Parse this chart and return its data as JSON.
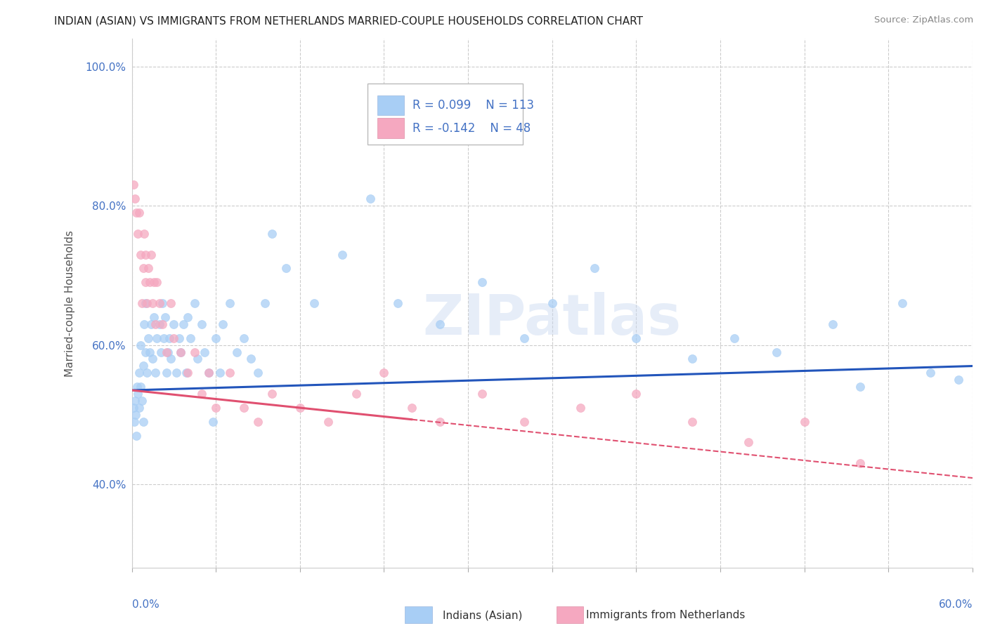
{
  "title": "INDIAN (ASIAN) VS IMMIGRANTS FROM NETHERLANDS MARRIED-COUPLE HOUSEHOLDS CORRELATION CHART",
  "source": "Source: ZipAtlas.com",
  "ylabel": "Married-couple Households",
  "legend_blue_r": "R = 0.099",
  "legend_blue_n": "N = 113",
  "legend_pink_r": "R = -0.142",
  "legend_pink_n": "N = 48",
  "legend_blue_label": "Indians (Asian)",
  "legend_pink_label": "Immigrants from Netherlands",
  "blue_color": "#a8cef5",
  "pink_color": "#f5a8c0",
  "trend_blue_color": "#2255bb",
  "trend_pink_color": "#e05070",
  "watermark": "ZIPatlas",
  "background_color": "#ffffff",
  "blue_scatter_x": [
    0.1,
    0.15,
    0.2,
    0.25,
    0.3,
    0.35,
    0.4,
    0.5,
    0.5,
    0.6,
    0.6,
    0.7,
    0.8,
    0.8,
    0.9,
    1.0,
    1.0,
    1.1,
    1.2,
    1.3,
    1.4,
    1.5,
    1.6,
    1.7,
    1.8,
    2.0,
    2.1,
    2.2,
    2.3,
    2.4,
    2.5,
    2.6,
    2.7,
    2.8,
    3.0,
    3.2,
    3.4,
    3.5,
    3.7,
    3.9,
    4.0,
    4.2,
    4.5,
    4.7,
    5.0,
    5.2,
    5.5,
    5.8,
    6.0,
    6.3,
    6.5,
    7.0,
    7.5,
    8.0,
    8.5,
    9.0,
    9.5,
    10.0,
    11.0,
    13.0,
    15.0,
    17.0,
    19.0,
    22.0,
    25.0,
    28.0,
    30.0,
    33.0,
    36.0,
    40.0,
    43.0,
    46.0,
    50.0,
    52.0,
    55.0,
    57.0,
    59.0
  ],
  "blue_scatter_y": [
    51,
    49,
    52,
    50,
    47,
    54,
    53,
    51,
    56,
    60,
    54,
    52,
    49,
    57,
    63,
    59,
    66,
    56,
    61,
    59,
    63,
    58,
    64,
    56,
    61,
    63,
    59,
    66,
    61,
    64,
    56,
    59,
    61,
    58,
    63,
    56,
    61,
    59,
    63,
    56,
    64,
    61,
    66,
    58,
    63,
    59,
    56,
    49,
    61,
    56,
    63,
    66,
    59,
    61,
    58,
    56,
    66,
    76,
    71,
    66,
    73,
    81,
    66,
    63,
    69,
    61,
    66,
    71,
    61,
    58,
    61,
    59,
    63,
    54,
    66,
    56,
    55
  ],
  "pink_scatter_x": [
    0.1,
    0.2,
    0.3,
    0.4,
    0.5,
    0.6,
    0.7,
    0.8,
    0.9,
    1.0,
    1.0,
    1.1,
    1.2,
    1.3,
    1.4,
    1.5,
    1.6,
    1.7,
    1.8,
    2.0,
    2.2,
    2.5,
    2.8,
    3.0,
    3.5,
    4.0,
    4.5,
    5.0,
    5.5,
    6.0,
    7.0,
    8.0,
    9.0,
    10.0,
    12.0,
    14.0,
    16.0,
    18.0,
    20.0,
    22.0,
    25.0,
    28.0,
    32.0,
    36.0,
    40.0,
    44.0,
    48.0,
    52.0
  ],
  "pink_scatter_y": [
    83,
    81,
    79,
    76,
    79,
    73,
    66,
    71,
    76,
    69,
    73,
    66,
    71,
    69,
    73,
    66,
    69,
    63,
    69,
    66,
    63,
    59,
    66,
    61,
    59,
    56,
    59,
    53,
    56,
    51,
    56,
    51,
    49,
    53,
    51,
    49,
    53,
    56,
    51,
    49,
    53,
    49,
    51,
    53,
    49,
    46,
    49,
    43
  ],
  "xmin": 0,
  "xmax": 60,
  "ymin": 28,
  "ymax": 104,
  "yticks": [
    40,
    60,
    80,
    100
  ],
  "ytick_labels": [
    "40.0%",
    "60.0%",
    "80.0%",
    "100.0%"
  ],
  "pink_solid_xmax": 20,
  "blue_intercept": 53.5,
  "blue_slope": 0.058,
  "pink_intercept": 53.5,
  "pink_slope": -0.21
}
